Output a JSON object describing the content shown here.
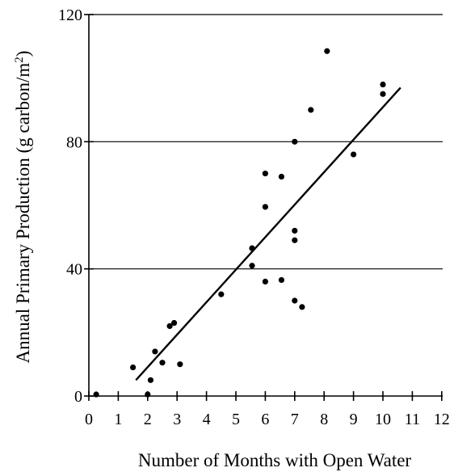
{
  "chart_data": {
    "type": "scatter",
    "title": "",
    "xlabel": "Number of Months with Open Water",
    "ylabel_main": "Annual Primary Production (g carbon/m",
    "ylabel_sup": "2",
    "ylabel_tail": ")",
    "xlim": [
      0,
      12
    ],
    "ylim": [
      0,
      120
    ],
    "x_ticks": [
      "0",
      "1",
      "2",
      "3",
      "4",
      "5",
      "6",
      "7",
      "8",
      "9",
      "10",
      "11",
      "12"
    ],
    "y_ticks": [
      "0",
      "40",
      "80",
      "120"
    ],
    "grid": "horizontal at 40, 80, 120",
    "series": [
      {
        "points": [
          [
            0.25,
            0.5
          ],
          [
            1.5,
            9
          ],
          [
            2,
            0.5
          ],
          [
            2.1,
            5
          ],
          [
            2.25,
            14
          ],
          [
            2.5,
            10.5
          ],
          [
            2.75,
            22
          ],
          [
            2.9,
            23
          ],
          [
            3.1,
            10
          ],
          [
            4.5,
            32
          ],
          [
            5.55,
            46.5
          ],
          [
            5.55,
            41
          ],
          [
            6,
            70
          ],
          [
            6,
            59.5
          ],
          [
            6,
            36
          ],
          [
            6.55,
            69
          ],
          [
            6.55,
            36.5
          ],
          [
            7,
            80
          ],
          [
            7,
            52
          ],
          [
            7,
            49
          ],
          [
            7,
            30
          ],
          [
            7.25,
            28
          ],
          [
            7.55,
            90
          ],
          [
            8.1,
            108.5
          ],
          [
            9,
            76
          ],
          [
            10,
            98
          ],
          [
            10,
            95
          ]
        ]
      }
    ],
    "trend_line": {
      "x": [
        1.6,
        10.6
      ],
      "y": [
        5,
        97
      ]
    }
  }
}
